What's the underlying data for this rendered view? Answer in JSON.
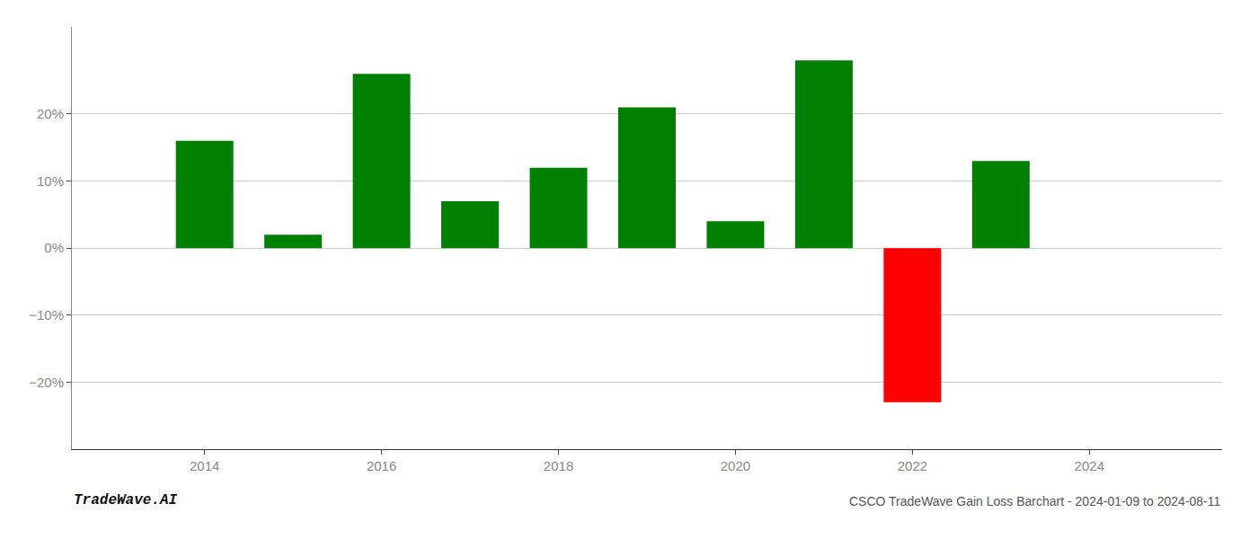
{
  "chart_data": {
    "type": "bar",
    "title": "CSCO TradeWave Gain Loss Barchart - 2024-01-09 to 2024-08-11",
    "annotations": [
      "TradeWave.AI"
    ],
    "x": [
      2014,
      2015,
      2016,
      2017,
      2018,
      2019,
      2020,
      2021,
      2022,
      2023
    ],
    "values": [
      0.16,
      0.02,
      0.26,
      0.07,
      0.12,
      0.21,
      0.04,
      0.28,
      -0.23,
      0.13
    ],
    "colors": [
      "#008000",
      "#008000",
      "#008000",
      "#008000",
      "#008000",
      "#008000",
      "#008000",
      "#008000",
      "#ff0000",
      "#008000"
    ],
    "xlim": [
      2012.5,
      2025.5
    ],
    "xticks": [
      2014,
      2016,
      2018,
      2020,
      2022,
      2024
    ],
    "ylim": [
      -0.3,
      0.33
    ],
    "yticks": [
      {
        "value": -0.2,
        "label": "−20%"
      },
      {
        "value": -0.1,
        "label": "−10%"
      },
      {
        "value": 0,
        "label": "0%"
      },
      {
        "value": 0.1,
        "label": "10%"
      },
      {
        "value": 0.2,
        "label": "20%"
      }
    ],
    "grid": true
  }
}
